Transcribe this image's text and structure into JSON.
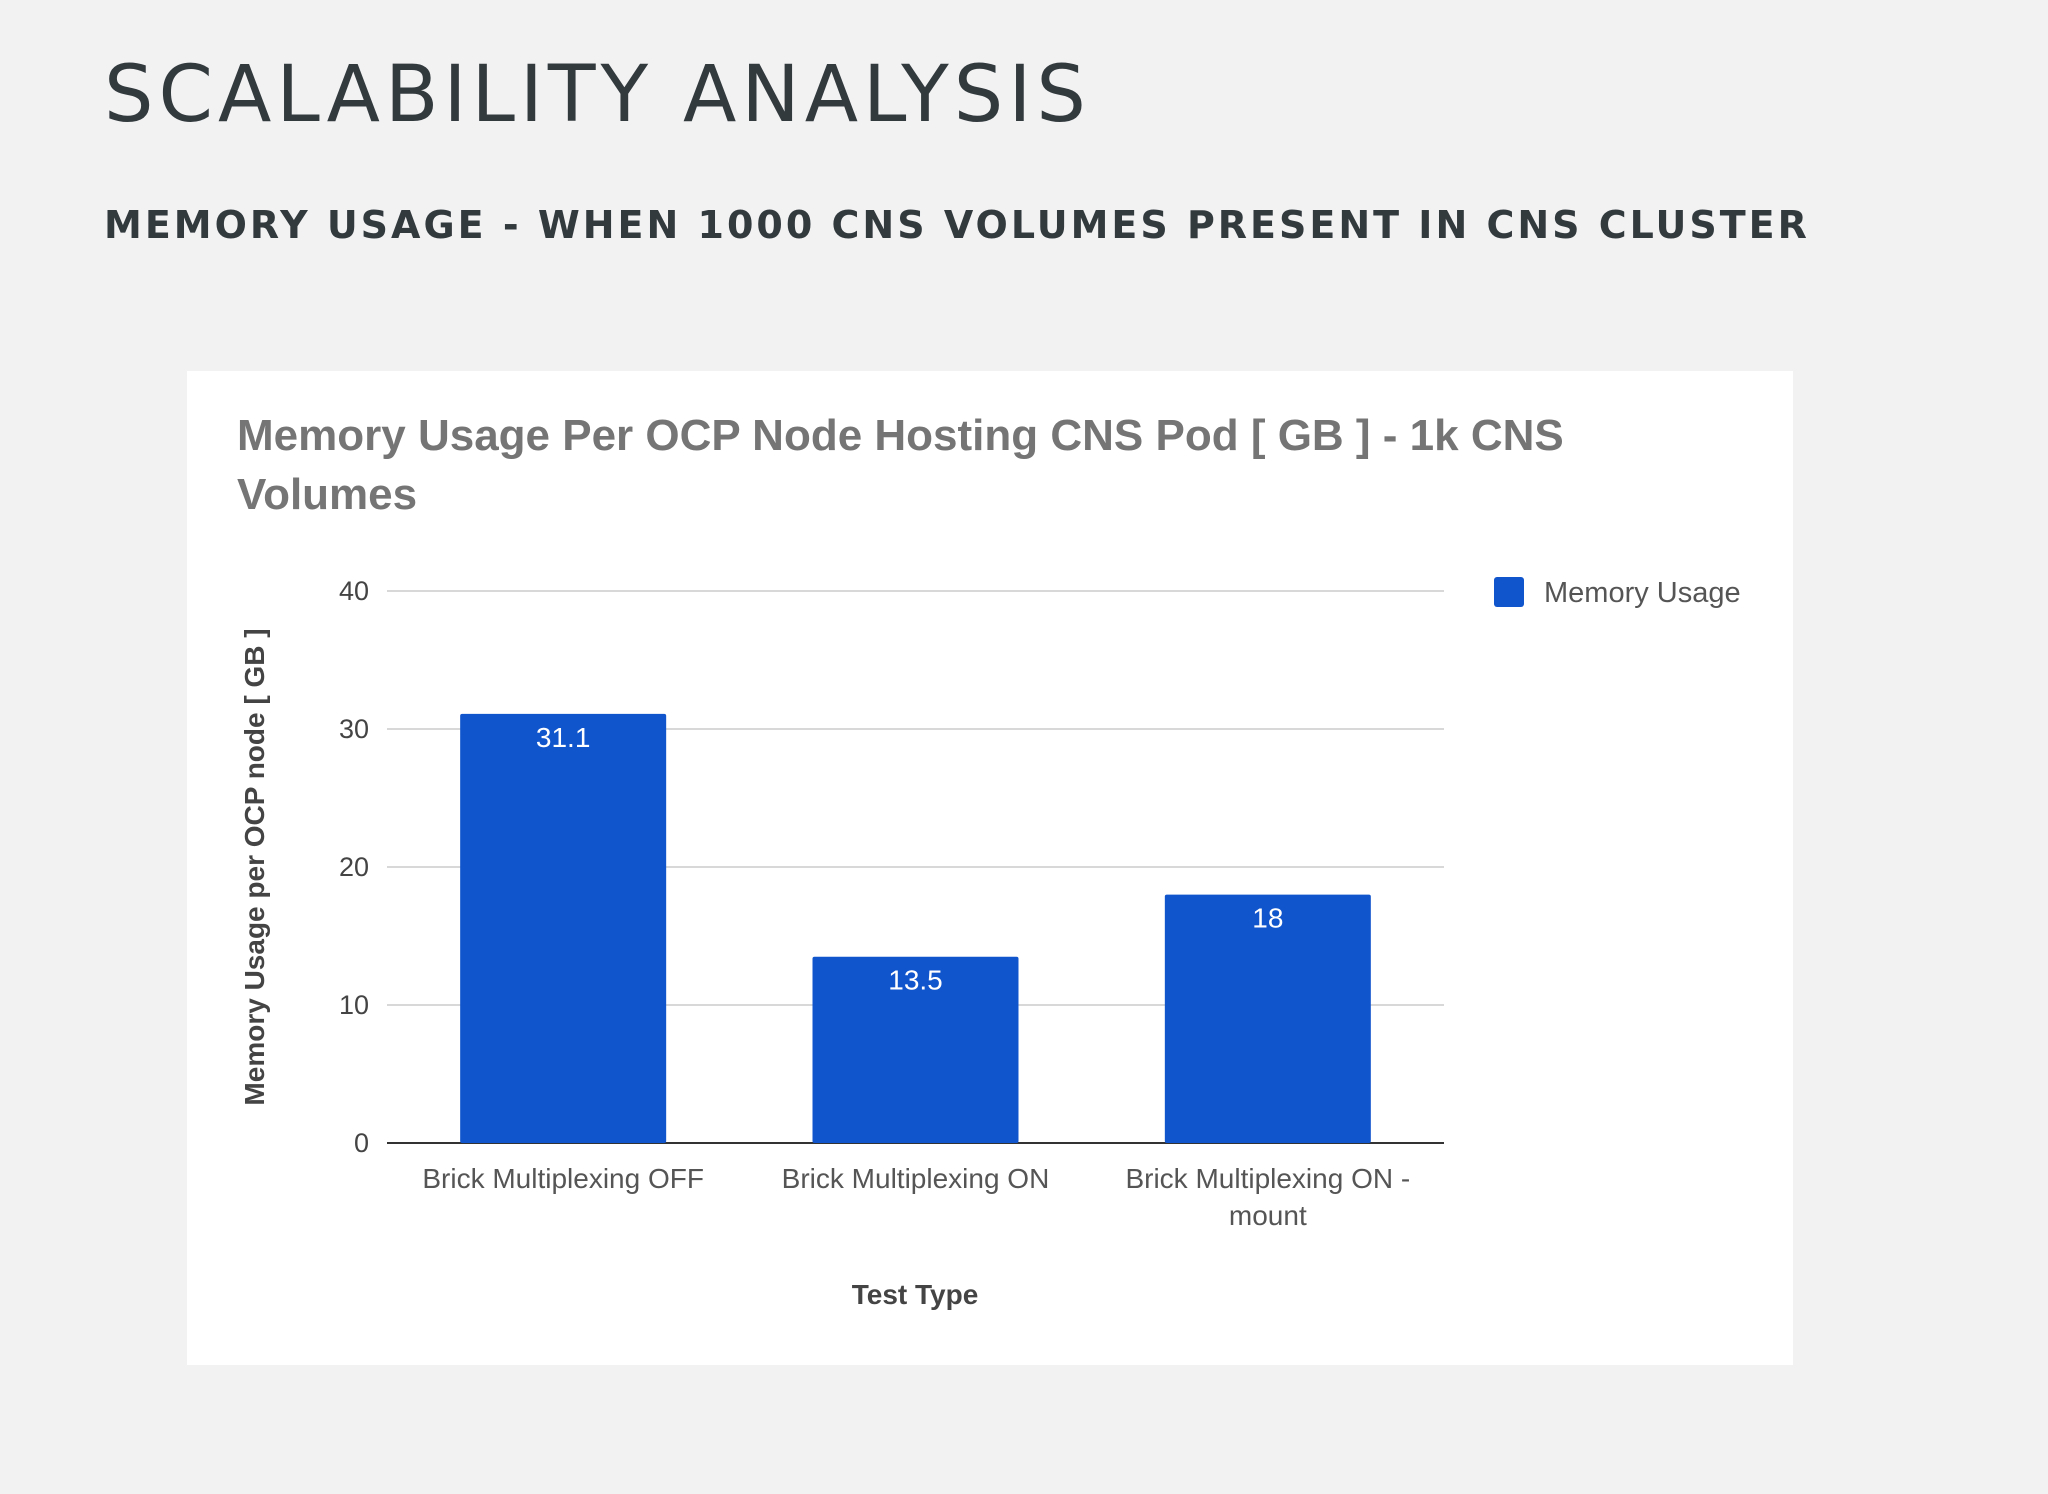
{
  "slide": {
    "title": "SCALABILITY ANALYSIS",
    "subtitle": "MEMORY USAGE - WHEN 1000 CNS VOLUMES PRESENT IN CNS CLUSTER"
  },
  "chart_data": {
    "type": "bar",
    "title_lines": [
      "Memory Usage Per OCP Node Hosting CNS Pod [ GB ]  - 1k CNS",
      "Volumes"
    ],
    "categories": [
      [
        "Brick Multiplexing OFF"
      ],
      [
        "Brick Multiplexing ON"
      ],
      [
        "Brick Multiplexing ON -",
        "mount"
      ]
    ],
    "series": [
      {
        "name": "Memory Usage",
        "values": [
          31.1,
          13.5,
          18
        ],
        "labels": [
          "31.1",
          "13.5",
          "18"
        ],
        "color": "#1155cc"
      }
    ],
    "xlabel": "Test Type",
    "ylabel": "Memory Usage per OCP node [ GB ]",
    "ylim": [
      0,
      40
    ],
    "yticks": [
      0,
      10,
      20,
      30,
      40
    ],
    "grid": true,
    "legend_position": "top-right"
  }
}
